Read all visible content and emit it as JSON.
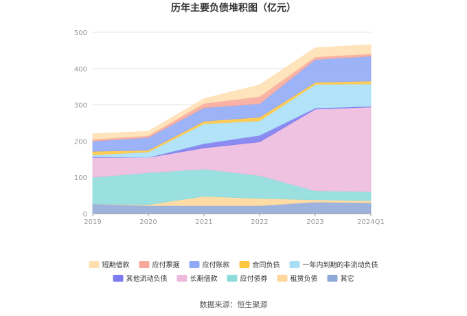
{
  "chart_data": {
    "type": "area",
    "stacked": true,
    "title": "历年主要负债堆积图（亿元）",
    "x": [
      "2019",
      "2020",
      "2021",
      "2022",
      "2023",
      "2024Q1"
    ],
    "ylim": [
      0,
      500
    ],
    "yticks": [
      0,
      100,
      200,
      300,
      400,
      500
    ],
    "grid": true,
    "legend_position": "bottom",
    "series": [
      {
        "name": "其它",
        "color": "#8FA9D8",
        "values": [
          27,
          22,
          22,
          22,
          32,
          30
        ]
      },
      {
        "name": "租赁负债",
        "color": "#FFD79A",
        "values": [
          0,
          3,
          26,
          20,
          6,
          6
        ]
      },
      {
        "name": "应付债券",
        "color": "#8DDCDC",
        "values": [
          73,
          88,
          75,
          63,
          25,
          25
        ]
      },
      {
        "name": "长期借款",
        "color": "#EDBADE",
        "values": [
          55,
          42,
          58,
          93,
          225,
          233
        ]
      },
      {
        "name": "其他流动负债",
        "color": "#7B7BEF",
        "values": [
          2,
          0,
          12,
          18,
          3,
          2
        ]
      },
      {
        "name": "一年内到期的非流动负债",
        "color": "#A8DFF7",
        "values": [
          5,
          15,
          55,
          40,
          65,
          62
        ]
      },
      {
        "name": "合同负债",
        "color": "#FFC640",
        "values": [
          10,
          5,
          7,
          10,
          6,
          8
        ]
      },
      {
        "name": "应付账款",
        "color": "#8FA9F7",
        "values": [
          28,
          35,
          37,
          37,
          63,
          68
        ]
      },
      {
        "name": "应付票据",
        "color": "#F7A89A",
        "values": [
          5,
          5,
          12,
          20,
          7,
          7
        ]
      },
      {
        "name": "短期借款",
        "color": "#FFDFB0",
        "values": [
          15,
          12,
          13,
          32,
          25,
          25
        ]
      }
    ]
  },
  "legend": [
    {
      "label": "短期借款",
      "color": "#FFDFB0"
    },
    {
      "label": "应付票据",
      "color": "#F7A89A"
    },
    {
      "label": "应付账款",
      "color": "#8FA9F7"
    },
    {
      "label": "合同负债",
      "color": "#FFC640"
    },
    {
      "label": "一年内到期的非流动负债",
      "color": "#A8DFF7"
    },
    {
      "label": "其他流动负债",
      "color": "#7B7BEF"
    },
    {
      "label": "长期借款",
      "color": "#EDBADE"
    },
    {
      "label": "应付债券",
      "color": "#8DDCDC"
    },
    {
      "label": "租赁负债",
      "color": "#FFD79A"
    },
    {
      "label": "其它",
      "color": "#8FA9D8"
    }
  ],
  "source": "数据来源：恒生聚源"
}
